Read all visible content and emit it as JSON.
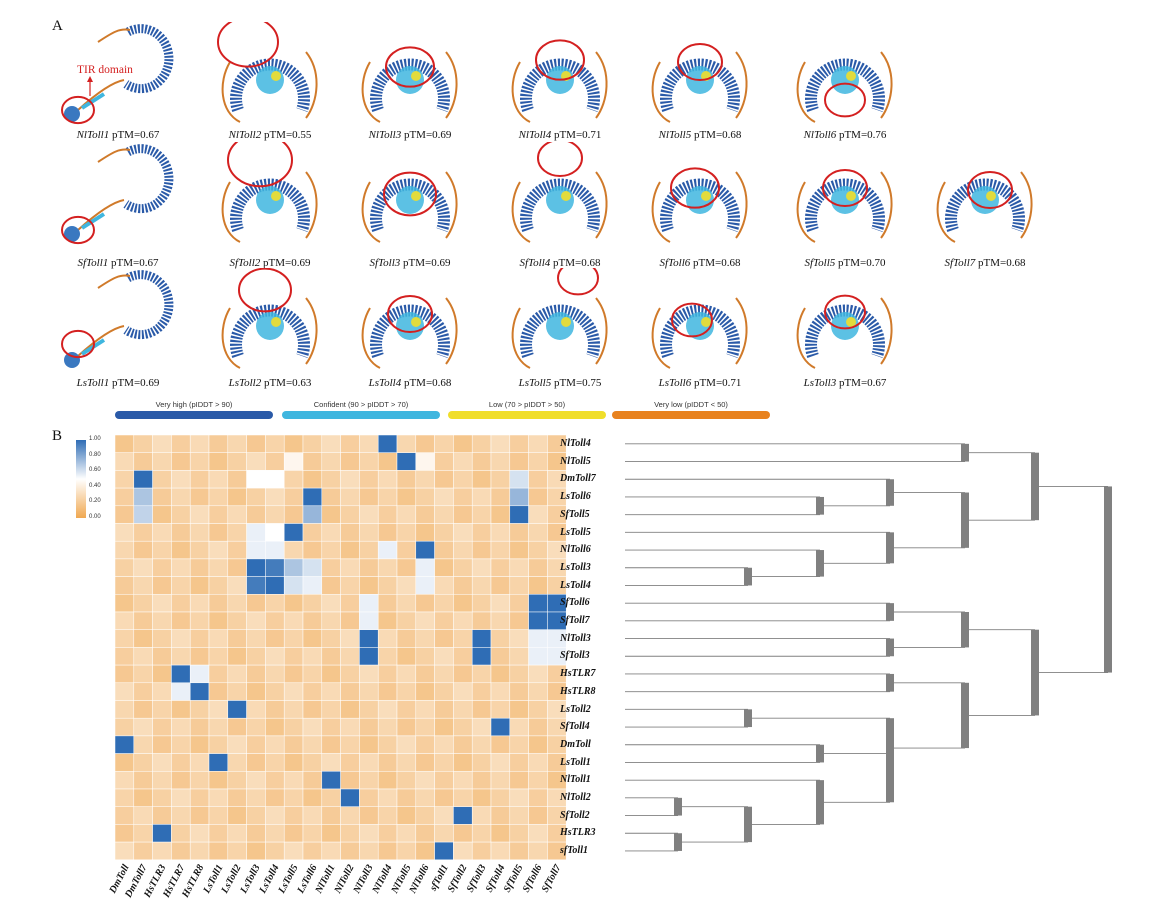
{
  "panel_a": {
    "letter": "A",
    "tir_label": "TIR domain",
    "rows": [
      [
        {
          "name": "NlToll1",
          "ptm": "pTM=0.67"
        },
        {
          "name": "NlToll2",
          "ptm": "pTM=0.55"
        },
        {
          "name": "NlToll3",
          "ptm": "pTM=0.69"
        },
        {
          "name": "NlToll4",
          "ptm": "pTM=0.71"
        },
        {
          "name": "NlToll5",
          "ptm": "pTM=0.68"
        },
        {
          "name": "NlToll6",
          "ptm": "pTM=0.76"
        }
      ],
      [
        {
          "name": "SfToll1",
          "ptm": "pTM=0.67"
        },
        {
          "name": "SfToll2",
          "ptm": "pTM=0.69"
        },
        {
          "name": "SfToll3",
          "ptm": "pTM=0.69"
        },
        {
          "name": "SfToll4",
          "ptm": "pTM=0.68"
        },
        {
          "name": "SfToll6",
          "ptm": "pTM=0.68"
        },
        {
          "name": "SfToll5",
          "ptm": "pTM=0.70"
        },
        {
          "name": "SfToll7",
          "ptm": "pTM=0.68"
        }
      ],
      [
        {
          "name": "LsToll1",
          "ptm": "pTM=0.69"
        },
        {
          "name": "LsToll2",
          "ptm": "pTM=0.63"
        },
        {
          "name": "LsToll4",
          "ptm": "pTM=0.68"
        },
        {
          "name": "LsToll5",
          "ptm": "pTM=0.75"
        },
        {
          "name": "LsToll6",
          "ptm": "pTM=0.71"
        },
        {
          "name": "LsToll3",
          "ptm": "pTM=0.67"
        }
      ]
    ],
    "legend": [
      {
        "label": "Very high (pIDDT > 90)",
        "color": "#2a5aa8"
      },
      {
        "label": "Confident (90 > pIDDT > 70)",
        "color": "#3fb6df"
      },
      {
        "label": "Low (70 > pIDDT > 50)",
        "color": "#f0de2a"
      },
      {
        "label": "Very low (pIDDT < 50)",
        "color": "#e8821e"
      }
    ]
  },
  "panel_b": {
    "letter": "B",
    "colorbar_ticks": [
      "1.00",
      "0.80",
      "0.60",
      "0.40",
      "0.20",
      "0.00"
    ],
    "colors": {
      "high": "#2f6db5",
      "mid": "#ffffff",
      "low": "#f0a851"
    },
    "row_labels": [
      "NlToll4",
      "NlToll5",
      "DmToll7",
      "LsToll6",
      "SfToll5",
      "LsToll5",
      "NlToll6",
      "LsToll3",
      "LsToll4",
      "SfToll6",
      "SfToll7",
      "NlToll3",
      "SfToll3",
      "HsTLR7",
      "HsTLR8",
      "LsToll2",
      "SfToll4",
      "DmToll",
      "LsToll1",
      "NlToll1",
      "NlToll2",
      "SfToll2",
      "HsTLR3",
      "sfToll1"
    ],
    "col_labels": [
      "DmToll",
      "DmToll7",
      "HsTLR3",
      "HsTLR7",
      "HsTLR8",
      "LsToll1",
      "LsToll2",
      "LsToll3",
      "LsToll4",
      "LsToll5",
      "LsToll6",
      "NlToll1",
      "NlToll2",
      "NlToll3",
      "NlToll4",
      "NlToll5",
      "NlToll6",
      "sfToll1",
      "SfToll2",
      "SfToll3",
      "SfToll4",
      "SfToll5",
      "SfToll6",
      "SfToll7"
    ],
    "chart_data": {
      "type": "heatmap",
      "rows": [
        "NlToll4",
        "NlToll5",
        "DmToll7",
        "LsToll6",
        "SfToll5",
        "LsToll5",
        "NlToll6",
        "LsToll3",
        "LsToll4",
        "SfToll6",
        "SfToll7",
        "NlToll3",
        "SfToll3",
        "HsTLR7",
        "HsTLR8",
        "LsToll2",
        "SfToll4",
        "DmToll",
        "LsToll1",
        "NlToll1",
        "NlToll2",
        "SfToll2",
        "HsTLR3",
        "sfToll1"
      ],
      "columns": [
        "DmToll",
        "DmToll7",
        "HsTLR3",
        "HsTLR7",
        "HsTLR8",
        "LsToll1",
        "LsToll2",
        "LsToll3",
        "LsToll4",
        "LsToll5",
        "LsToll6",
        "NlToll1",
        "NlToll2",
        "NlToll3",
        "NlToll4",
        "NlToll5",
        "NlToll6",
        "sfToll1",
        "SfToll2",
        "SfToll3",
        "SfToll4",
        "SfToll5",
        "SfToll6",
        "SfToll7"
      ],
      "range": [
        0,
        1
      ],
      "background": 0.22,
      "strong_cells": [
        [
          0,
          14,
          1.0
        ],
        [
          1,
          15,
          1.0
        ],
        [
          2,
          1,
          1.0
        ],
        [
          3,
          10,
          1.0
        ],
        [
          4,
          21,
          1.0
        ],
        [
          5,
          9,
          1.0
        ],
        [
          6,
          16,
          1.0
        ],
        [
          7,
          7,
          1.0
        ],
        [
          7,
          8,
          0.95
        ],
        [
          8,
          7,
          0.95
        ],
        [
          8,
          8,
          1.0
        ],
        [
          9,
          22,
          1.0
        ],
        [
          9,
          23,
          1.0
        ],
        [
          10,
          22,
          1.0
        ],
        [
          10,
          23,
          1.0
        ],
        [
          11,
          13,
          1.0
        ],
        [
          11,
          19,
          1.0
        ],
        [
          12,
          13,
          1.0
        ],
        [
          12,
          19,
          1.0
        ],
        [
          13,
          3,
          1.0
        ],
        [
          14,
          4,
          1.0
        ],
        [
          15,
          6,
          1.0
        ],
        [
          16,
          20,
          1.0
        ],
        [
          17,
          0,
          1.0
        ],
        [
          18,
          5,
          1.0
        ],
        [
          19,
          11,
          1.0
        ],
        [
          20,
          12,
          1.0
        ],
        [
          21,
          18,
          1.0
        ],
        [
          22,
          2,
          1.0
        ],
        [
          23,
          17,
          1.0
        ]
      ],
      "medium_cells": [
        [
          2,
          21,
          0.6
        ],
        [
          3,
          1,
          0.7
        ],
        [
          3,
          21,
          0.75
        ],
        [
          4,
          1,
          0.65
        ],
        [
          4,
          10,
          0.75
        ],
        [
          5,
          7,
          0.55
        ],
        [
          5,
          8,
          0.5
        ],
        [
          6,
          7,
          0.55
        ],
        [
          6,
          8,
          0.55
        ],
        [
          6,
          14,
          0.55
        ],
        [
          7,
          9,
          0.7
        ],
        [
          7,
          10,
          0.6
        ],
        [
          7,
          16,
          0.55
        ],
        [
          8,
          9,
          0.6
        ],
        [
          8,
          10,
          0.55
        ],
        [
          8,
          16,
          0.55
        ],
        [
          9,
          13,
          0.55
        ],
        [
          10,
          13,
          0.55
        ],
        [
          11,
          22,
          0.55
        ],
        [
          11,
          23,
          0.55
        ],
        [
          12,
          22,
          0.55
        ],
        [
          12,
          23,
          0.55
        ],
        [
          13,
          4,
          0.55
        ],
        [
          14,
          3,
          0.55
        ],
        [
          2,
          7,
          0.5
        ],
        [
          2,
          8,
          0.5
        ],
        [
          1,
          9,
          0.45
        ],
        [
          1,
          16,
          0.45
        ]
      ]
    },
    "dendrogram_color": "#808080"
  }
}
